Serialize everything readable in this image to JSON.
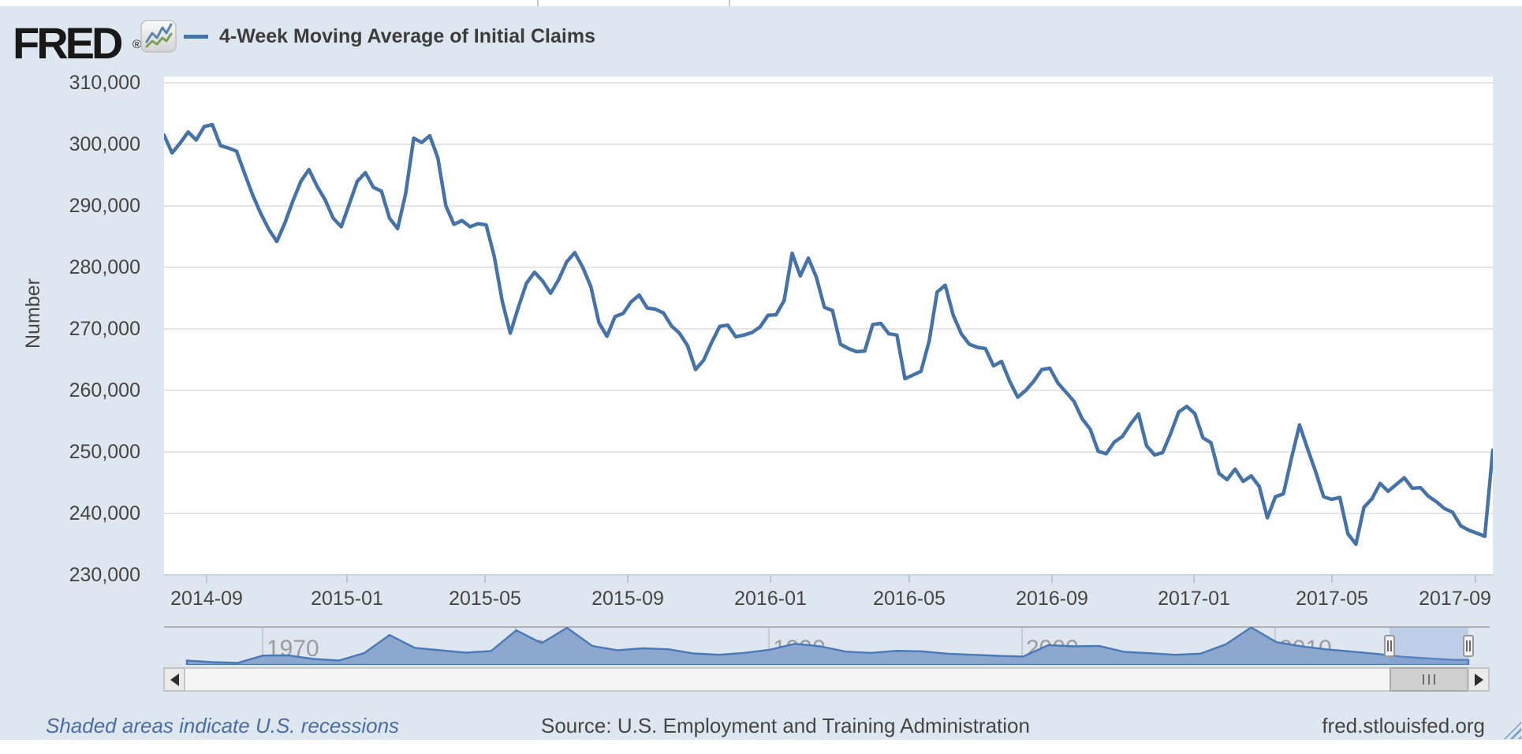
{
  "header": {
    "logo_text": "FRED",
    "logo_registered": "®",
    "legend_label": "4-Week Moving Average of Initial Claims"
  },
  "y_axis": {
    "title": "Number",
    "tick_labels": [
      "310,000",
      "300,000",
      "290,000",
      "280,000",
      "270,000",
      "260,000",
      "250,000",
      "240,000",
      "230,000"
    ]
  },
  "x_axis": {
    "tick_labels": [
      "2014-09",
      "2015-01",
      "2015-05",
      "2015-09",
      "2016-01",
      "2016-05",
      "2016-09",
      "2017-01",
      "2017-05",
      "2017-09"
    ]
  },
  "navigator": {
    "decade_labels": [
      "1970",
      "1980",
      "1990",
      "2000",
      "2010"
    ]
  },
  "footer": {
    "recessions_note": "Shaded areas indicate U.S. recessions",
    "source": "Source: U.S. Employment and Training Administration",
    "site": "fred.stlouisfed.org"
  },
  "colors": {
    "page_background": "#dee7f0",
    "plot_background": "#ffffff",
    "gridline": "#e6e6e6",
    "series_line": "#4572a7",
    "navigator_fill": "#8da8ce",
    "navigator_line": "#4b79b7",
    "link_blue": "#4a6da6",
    "text": "#454545"
  },
  "chart_data": {
    "type": "line",
    "title": "4-Week Moving Average of Initial Claims",
    "xlabel": "",
    "ylabel": "Number",
    "ylim": [
      230000,
      310000
    ],
    "y_tick_step": 10000,
    "x_range_labels": [
      "2014-08",
      "2017-09"
    ],
    "frequency": "weekly",
    "values_unit": "thousands of claims",
    "grid": true,
    "legend_position": "top-left",
    "series": [
      {
        "name": "4-Week Moving Average of Initial Claims",
        "color": "#4572a7",
        "values": [
          301.5,
          298.6,
          300.2,
          302.0,
          300.7,
          302.9,
          303.2,
          299.8,
          299.4,
          298.9,
          295.3,
          291.8,
          288.8,
          286.2,
          284.2,
          287.2,
          290.8,
          294.0,
          295.9,
          293.2,
          291.0,
          288.0,
          286.6,
          290.3,
          294.0,
          295.4,
          293.0,
          292.4,
          288.0,
          286.3,
          292.0,
          301.0,
          300.3,
          301.4,
          297.8,
          290.0,
          287.0,
          287.6,
          286.6,
          287.1,
          286.9,
          281.8,
          274.5,
          269.3,
          273.5,
          277.4,
          279.2,
          277.8,
          275.8,
          278.0,
          280.9,
          282.4,
          280.0,
          276.9,
          271.0,
          268.8,
          272.0,
          272.5,
          274.4,
          275.5,
          273.4,
          273.2,
          272.6,
          270.5,
          269.3,
          267.3,
          263.4,
          264.9,
          267.8,
          270.4,
          270.6,
          268.7,
          269.0,
          269.4,
          270.3,
          272.2,
          272.3,
          274.6,
          282.3,
          278.6,
          281.5,
          278.4,
          273.5,
          273.0,
          267.5,
          266.8,
          266.3,
          266.4,
          270.7,
          270.9,
          269.2,
          269.0,
          261.9,
          262.5,
          263.1,
          268.0,
          276.0,
          277.1,
          272.2,
          269.2,
          267.5,
          267.0,
          266.8,
          264.0,
          264.7,
          261.5,
          258.9,
          260.0,
          261.5,
          263.4,
          263.6,
          261.2,
          259.7,
          258.2,
          255.4,
          253.7,
          250.1,
          249.7,
          251.6,
          252.5,
          254.5,
          256.2,
          251.0,
          249.5,
          249.9,
          253.0,
          256.5,
          257.4,
          256.2,
          252.3,
          251.5,
          246.5,
          245.5,
          247.2,
          245.2,
          246.1,
          244.4,
          239.3,
          242.7,
          243.2,
          249.0,
          254.4,
          250.5,
          246.8,
          242.7,
          242.3,
          242.6,
          236.7,
          235.0,
          241.0,
          242.4,
          244.9,
          243.6,
          244.7,
          245.8,
          244.1,
          244.2,
          242.8,
          241.9,
          240.8,
          240.2,
          238.0,
          237.3,
          236.8,
          236.3,
          250.3
        ]
      }
    ],
    "navigator_series": {
      "name": "Initial Claims 4-Week Moving Average (full history)",
      "type": "area",
      "start_year": 1967,
      "year_step": 1,
      "values": [
        235,
        215,
        205,
        298,
        300,
        255,
        235,
        330,
        558,
        395,
        365,
        335,
        355,
        618,
        455,
        650,
        420,
        365,
        390,
        378,
        325,
        308,
        332,
        372,
        448,
        415,
        348,
        332,
        358,
        352,
        322,
        308,
        295,
        285,
        430,
        415,
        420,
        345,
        328,
        308,
        322,
        440,
        659,
        468,
        415,
        375,
        348,
        318,
        282,
        262,
        243
      ],
      "selected_range_labels": [
        "2014-08",
        "2017-09"
      ]
    }
  }
}
